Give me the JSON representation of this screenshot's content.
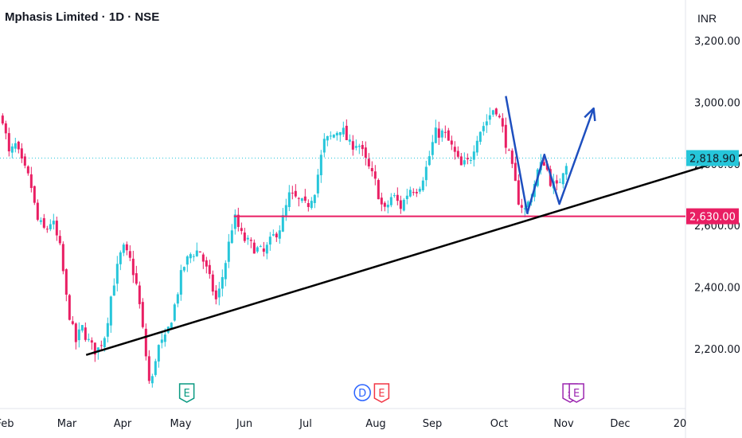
{
  "header": {
    "title": "Mphasis Limited · 1D · NSE",
    "currency": "INR"
  },
  "colors": {
    "up": "#26c6da",
    "down": "#e91e63",
    "support": "#e91e63",
    "trendline": "#000000",
    "projection": "#1e4fbf",
    "earnings": "#089981",
    "dividend": "#2962ff",
    "earnings_alt": "#f23645",
    "split": "#9c27b0"
  },
  "chart_data": {
    "type": "candlestick",
    "title": "Mphasis Limited · 1D · NSE",
    "ylabel": "INR",
    "y_axis": {
      "ticks": [
        3200,
        3000,
        2800,
        2600,
        2400,
        2200
      ],
      "tick_labels": [
        "3,200.00",
        "3,000.00",
        "2,800.00",
        "2,600.00",
        "2,400.00",
        "2,200.00"
      ]
    },
    "x_axis": {
      "labels": [
        "Feb",
        "Mar",
        "Apr",
        "May",
        "Jun",
        "Jul",
        "Aug",
        "Sep",
        "Oct",
        "Nov",
        "Dec",
        "20"
      ]
    },
    "last_price": {
      "value": 2818.9,
      "label": "2,818.90"
    },
    "support_level": {
      "value": 2630.0,
      "label": "2,630.00"
    },
    "close_path": [
      [
        "2024-01-31",
        2950
      ],
      [
        "2024-02-03",
        2830
      ],
      [
        "2024-02-06",
        2860
      ],
      [
        "2024-02-09",
        2800
      ],
      [
        "2024-02-13",
        2740
      ],
      [
        "2024-02-16",
        2620
      ],
      [
        "2024-02-20",
        2580
      ],
      [
        "2024-02-23",
        2620
      ],
      [
        "2024-02-27",
        2520
      ],
      [
        "2024-03-01",
        2350
      ],
      [
        "2024-03-05",
        2220
      ],
      [
        "2024-03-08",
        2270
      ],
      [
        "2024-03-12",
        2210
      ],
      [
        "2024-03-15",
        2190
      ],
      [
        "2024-03-19",
        2250
      ],
      [
        "2024-03-22",
        2390
      ],
      [
        "2024-03-27",
        2530
      ],
      [
        "2024-03-31",
        2480
      ],
      [
        "2024-04-03",
        2390
      ],
      [
        "2024-04-06",
        2230
      ],
      [
        "2024-04-09",
        2060
      ],
      [
        "2024-04-12",
        2200
      ],
      [
        "2024-04-16",
        2230
      ],
      [
        "2024-04-20",
        2330
      ],
      [
        "2024-04-24",
        2460
      ],
      [
        "2024-04-28",
        2510
      ],
      [
        "2024-05-02",
        2520
      ],
      [
        "2024-05-06",
        2440
      ],
      [
        "2024-05-10",
        2350
      ],
      [
        "2024-05-14",
        2480
      ],
      [
        "2024-05-18",
        2630
      ],
      [
        "2024-05-22",
        2560
      ],
      [
        "2024-05-27",
        2530
      ],
      [
        "2024-06-01",
        2510
      ],
      [
        "2024-06-05",
        2560
      ],
      [
        "2024-06-09",
        2600
      ],
      [
        "2024-06-13",
        2700
      ],
      [
        "2024-06-17",
        2680
      ],
      [
        "2024-06-21",
        2660
      ],
      [
        "2024-06-25",
        2720
      ],
      [
        "2024-06-29",
        2870
      ],
      [
        "2024-07-03",
        2890
      ],
      [
        "2024-07-07",
        2920
      ],
      [
        "2024-07-11",
        2860
      ],
      [
        "2024-07-15",
        2870
      ],
      [
        "2024-07-19",
        2800
      ],
      [
        "2024-07-23",
        2740
      ],
      [
        "2024-07-27",
        2640
      ],
      [
        "2024-07-31",
        2700
      ],
      [
        "2024-08-04",
        2660
      ],
      [
        "2024-08-08",
        2720
      ],
      [
        "2024-08-12",
        2720
      ],
      [
        "2024-08-16",
        2790
      ],
      [
        "2024-08-20",
        2900
      ],
      [
        "2024-08-24",
        2900
      ],
      [
        "2024-08-28",
        2850
      ],
      [
        "2024-09-01",
        2790
      ],
      [
        "2024-09-05",
        2810
      ],
      [
        "2024-09-09",
        2900
      ],
      [
        "2024-09-13",
        2940
      ],
      [
        "2024-09-17",
        2990
      ],
      [
        "2024-09-21",
        2900
      ],
      [
        "2024-09-25",
        2780
      ],
      [
        "2024-09-28",
        2680
      ],
      [
        "2024-10-01",
        2650
      ],
      [
        "2024-10-04",
        2700
      ],
      [
        "2024-10-07",
        2780
      ],
      [
        "2024-10-10",
        2810
      ],
      [
        "2024-10-13",
        2740
      ],
      [
        "2024-10-16",
        2720
      ],
      [
        "2024-10-19",
        2790
      ],
      [
        "2024-10-21",
        2818.9
      ]
    ],
    "annotations": {
      "support_line": {
        "from": [
          "2024-05-18",
          2630
        ],
        "to": [
          "2025-01-20",
          2630
        ],
        "label": "2,630.00"
      },
      "trend_line": {
        "from": [
          "2024-03-10",
          2180
        ],
        "to": [
          "2025-01-20",
          2850
        ]
      },
      "projection_path": [
        [
          "2024-09-22",
          3020
        ],
        [
          "2024-10-02",
          2640
        ],
        [
          "2024-10-10",
          2830
        ],
        [
          "2024-10-17",
          2670
        ],
        [
          "2024-11-02",
          2980
        ]
      ]
    },
    "events": [
      {
        "date": "2024-04-26",
        "label": "E",
        "kind": "earnings"
      },
      {
        "date": "2024-07-17",
        "label": "D",
        "kind": "dividend"
      },
      {
        "date": "2024-07-26",
        "label": "E",
        "kind": "earnings_alt"
      },
      {
        "date": "2024-10-22",
        "label": "⚡",
        "kind": "split"
      },
      {
        "date": "2024-10-25",
        "label": "E",
        "kind": "split"
      }
    ]
  }
}
